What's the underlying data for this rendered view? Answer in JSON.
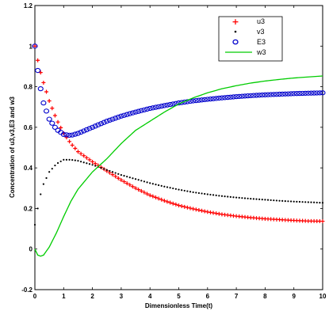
{
  "chart_data": {
    "type": "scatter",
    "title": "",
    "xlabel": "Dimensionless Time(t)",
    "ylabel": "Concentration of u3,v3,E3 and w3",
    "xlim": [
      0,
      10
    ],
    "ylim": [
      -0.2,
      1.2
    ],
    "x_ticks": [
      "0",
      "1",
      "2",
      "3",
      "4",
      "5",
      "6",
      "7",
      "8",
      "9",
      "10"
    ],
    "y_ticks": [
      "-0.2",
      "0",
      "0.2",
      "0.4",
      "0.6",
      "0.8",
      "1",
      "1.2"
    ],
    "grid": false,
    "legend_position": "top-right",
    "x": [
      0,
      0.1,
      0.2,
      0.3,
      0.5,
      0.75,
      1,
      1.25,
      1.5,
      2,
      2.5,
      3,
      3.5,
      4,
      4.5,
      5,
      5.5,
      6,
      6.5,
      7,
      7.5,
      8,
      8.5,
      9,
      9.5,
      10
    ],
    "series": [
      {
        "name": "u3",
        "marker": "plus",
        "color": "#ff0000",
        "values": [
          1.0,
          0.93,
          0.87,
          0.82,
          0.73,
          0.64,
          0.57,
          0.52,
          0.48,
          0.43,
          0.385,
          0.34,
          0.3,
          0.265,
          0.238,
          0.215,
          0.198,
          0.183,
          0.171,
          0.162,
          0.155,
          0.149,
          0.145,
          0.141,
          0.138,
          0.137
        ]
      },
      {
        "name": "v3",
        "marker": "dot",
        "color": "#000000",
        "values": [
          0.12,
          0.2,
          0.27,
          0.32,
          0.38,
          0.42,
          0.44,
          0.44,
          0.435,
          0.415,
          0.39,
          0.365,
          0.345,
          0.325,
          0.308,
          0.293,
          0.28,
          0.27,
          0.261,
          0.254,
          0.248,
          0.243,
          0.238,
          0.234,
          0.231,
          0.228
        ]
      },
      {
        "name": "E3",
        "marker": "circle",
        "color": "#0000cc",
        "values": [
          1.0,
          0.88,
          0.79,
          0.72,
          0.64,
          0.59,
          0.565,
          0.56,
          0.57,
          0.6,
          0.63,
          0.655,
          0.675,
          0.693,
          0.707,
          0.72,
          0.73,
          0.738,
          0.745,
          0.751,
          0.756,
          0.76,
          0.763,
          0.766,
          0.768,
          0.77
        ]
      },
      {
        "name": "w3",
        "marker": "line",
        "color": "#00cc00",
        "values": [
          0.0,
          -0.03,
          -0.035,
          -0.03,
          0.01,
          0.08,
          0.16,
          0.235,
          0.295,
          0.38,
          0.445,
          0.52,
          0.585,
          0.63,
          0.675,
          0.715,
          0.745,
          0.77,
          0.79,
          0.805,
          0.818,
          0.828,
          0.836,
          0.843,
          0.848,
          0.853
        ]
      }
    ]
  }
}
